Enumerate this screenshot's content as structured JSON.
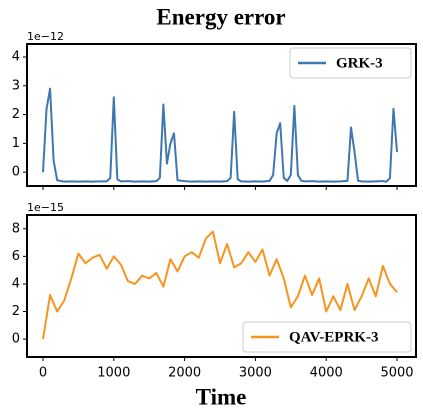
{
  "chart_data": [
    {
      "type": "line",
      "title": "Energy error",
      "offset_text": "1e−12",
      "x": [
        0,
        50,
        100,
        150,
        200,
        300,
        400,
        500,
        600,
        700,
        800,
        900,
        950,
        1000,
        1050,
        1100,
        1200,
        1300,
        1400,
        1500,
        1600,
        1650,
        1700,
        1750,
        1800,
        1850,
        1900,
        2000,
        2100,
        2200,
        2300,
        2400,
        2500,
        2600,
        2650,
        2700,
        2750,
        2800,
        2900,
        3000,
        3100,
        3200,
        3250,
        3300,
        3350,
        3400,
        3450,
        3500,
        3550,
        3600,
        3650,
        3700,
        3800,
        3900,
        4000,
        4100,
        4200,
        4300,
        4350,
        4400,
        4450,
        4500,
        4600,
        4700,
        4800,
        4850,
        4900,
        4950,
        5000
      ],
      "series": [
        {
          "name": "GRK-3",
          "color": "#3f77b0",
          "values": [
            0,
            2.2,
            2.9,
            0.4,
            -0.28,
            -0.33,
            -0.32,
            -0.33,
            -0.32,
            -0.33,
            -0.32,
            -0.32,
            -0.2,
            2.6,
            -0.25,
            -0.32,
            -0.31,
            -0.33,
            -0.32,
            -0.33,
            -0.31,
            -0.2,
            2.35,
            0.3,
            1.0,
            1.35,
            -0.28,
            -0.31,
            -0.33,
            -0.32,
            -0.33,
            -0.32,
            -0.33,
            -0.31,
            -0.2,
            2.1,
            -0.25,
            -0.32,
            -0.33,
            -0.32,
            -0.33,
            -0.3,
            -0.1,
            1.35,
            1.7,
            -0.2,
            -0.3,
            -0.1,
            2.3,
            -0.1,
            -0.3,
            -0.32,
            -0.31,
            -0.33,
            -0.32,
            -0.33,
            -0.32,
            -0.3,
            1.55,
            0.7,
            -0.3,
            -0.32,
            -0.33,
            -0.32,
            -0.31,
            -0.33,
            -0.2,
            2.2,
            0.7
          ]
        }
      ],
      "xlim": [
        -226,
        5268
      ],
      "ylim": [
        -0.48,
        4.45
      ],
      "yticks": [
        0,
        1,
        2,
        3,
        4
      ],
      "xticks": [
        0,
        1000,
        2000,
        3000,
        4000,
        5000
      ],
      "legend": "upper right"
    },
    {
      "type": "line",
      "offset_text": "1e−15",
      "xlabel": "Time",
      "x": [
        0,
        100,
        200,
        300,
        400,
        500,
        600,
        700,
        800,
        900,
        1000,
        1100,
        1200,
        1300,
        1400,
        1500,
        1600,
        1700,
        1800,
        1900,
        2000,
        2100,
        2200,
        2300,
        2400,
        2500,
        2600,
        2700,
        2800,
        2900,
        3000,
        3100,
        3200,
        3300,
        3400,
        3500,
        3600,
        3700,
        3800,
        3900,
        4000,
        4100,
        4200,
        4300,
        4400,
        4500,
        4600,
        4700,
        4800,
        4900,
        5000
      ],
      "series": [
        {
          "name": "QAV-EPRK-3",
          "color": "#f7941d",
          "values": [
            0,
            3.2,
            2.0,
            2.8,
            4.4,
            6.2,
            5.5,
            5.9,
            6.1,
            5.1,
            6.0,
            5.4,
            4.2,
            4.0,
            4.6,
            4.4,
            4.8,
            3.8,
            5.8,
            4.9,
            6.0,
            6.3,
            5.9,
            7.3,
            7.8,
            5.5,
            6.9,
            5.2,
            5.5,
            6.3,
            5.6,
            6.5,
            4.6,
            5.8,
            4.4,
            2.3,
            3.1,
            4.6,
            3.2,
            4.4,
            2.0,
            3.1,
            2.1,
            4.0,
            2.1,
            3.1,
            4.4,
            3.1,
            5.3,
            4.0,
            3.4
          ]
        }
      ],
      "xlim": [
        -226,
        5268
      ],
      "ylim": [
        -1.3,
        9.0
      ],
      "yticks": [
        0,
        2,
        4,
        6,
        8
      ],
      "xticks": [
        0,
        1000,
        2000,
        3000,
        4000,
        5000
      ],
      "legend": "lower right"
    }
  ]
}
